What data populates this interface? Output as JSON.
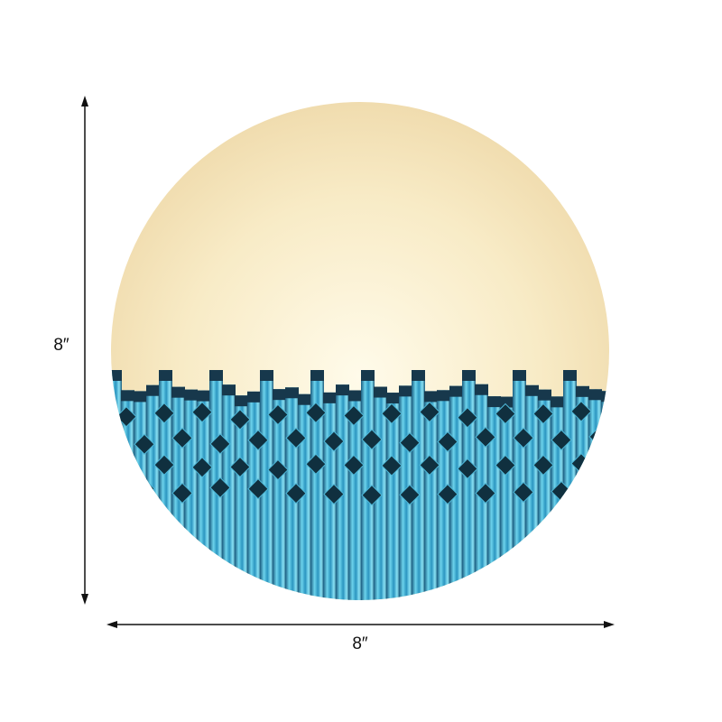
{
  "product": {
    "height_label": "8″",
    "width_label": "8″"
  },
  "colors": {
    "glow_center": "#fdf6d8",
    "glow_edge": "#f0dcae",
    "crystal_light": "#6ad0ea",
    "crystal_mid": "#2a8fb8",
    "crystal_dark": "#123a52"
  }
}
